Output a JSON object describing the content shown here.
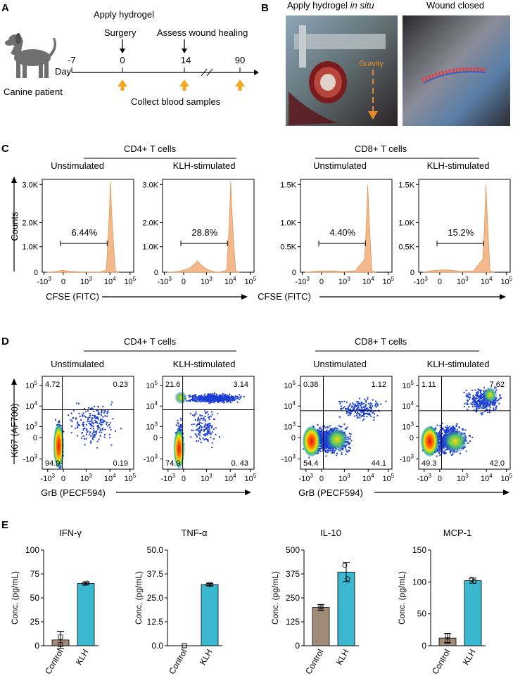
{
  "panels": {
    "A": "A",
    "B": "B",
    "C": "C",
    "D": "D",
    "E": "E"
  },
  "panel_a": {
    "apply_hydrogel": "Apply hydrogel",
    "surgery": "Surgery",
    "assess": "Assess wound healing",
    "patient": "Canine patient",
    "day_label": "Day",
    "days": [
      "-7",
      "0",
      "14",
      "90"
    ],
    "collect": "Collect blood samples",
    "colors": {
      "arrow": "#f5a623",
      "dog": "#6f6f6f"
    }
  },
  "panel_b": {
    "left_title_prefix": "Apply hydrogel ",
    "left_title_italic": "in situ",
    "right_title": "Wound closed",
    "gravity": "Gravity"
  },
  "panel_c": {
    "group_cd4": "CD4+ T cells",
    "group_cd8": "CD8+ T cells",
    "cond_unstim": "Unstimulated",
    "cond_klh": "KLH-stimulated",
    "ylabel": "Counts",
    "xlabel": "CFSE (FITC)",
    "hist_color": "#f3b98c",
    "cd4_yticks": [
      "1.0K",
      "2.0K",
      "3.0K"
    ],
    "cd8_yticks": [
      "0.5K",
      "1.0K",
      "1.5K"
    ],
    "xticks": [
      "-10",
      "0",
      "10",
      "10",
      "10"
    ],
    "xtick_exp": [
      "3",
      "",
      "3",
      "4",
      "5"
    ],
    "gates": [
      "6.44%",
      "28.8%",
      "4.40%",
      "15.2%"
    ]
  },
  "panel_d": {
    "group_cd4": "CD4+ T cells",
    "group_cd8": "CD8+ T cells",
    "cond_unstim": "Unstimulated",
    "cond_klh": "KLH-stimulated",
    "ylabel": "Ki67 (AF700)",
    "xlabel": "GrB (PECF594)",
    "yticks": [
      "10",
      "10",
      "0",
      "-10"
    ],
    "ytick_exp": [
      "5",
      "4",
      "",
      "3"
    ],
    "ytick3": "10",
    "ytick3_exp": "3",
    "xticks": [
      "-10",
      "0",
      "10",
      "10",
      "10"
    ],
    "xtick_exp": [
      "3",
      "",
      "3",
      "4",
      "5"
    ],
    "quadrants": [
      {
        "ul": "4.72",
        "ur": "0.23",
        "ll": "94.9",
        "lr": "0.19"
      },
      {
        "ul": "21.6",
        "ur": "3.14",
        "ll": "74.9",
        "lr": "0. 43"
      },
      {
        "ul": "0.38",
        "ur": "1.12",
        "ll": "54.4",
        "lr": "44.1"
      },
      {
        "ul": "1.11",
        "ur": "7.62",
        "ll": "49.3",
        "lr": "42.0"
      }
    ]
  },
  "chart_data": [
    {
      "type": "bar",
      "title": "IFN-γ",
      "categories": [
        "Control",
        "KLH"
      ],
      "values": [
        6,
        65
      ],
      "errors": [
        9,
        1
      ],
      "points": [
        [
          9,
          1
        ],
        [
          65,
          65.5
        ]
      ],
      "ylabel": "Conc. (pg/mL)",
      "ylim": [
        0,
        100
      ],
      "yticks": [
        "0",
        "25",
        "50",
        "75",
        "100"
      ]
    },
    {
      "type": "bar",
      "title": "TNF-α",
      "categories": [
        "Control",
        "KLH"
      ],
      "values": [
        0,
        32
      ],
      "errors": [
        0,
        0.5
      ],
      "points": [
        [
          0,
          0
        ],
        [
          32,
          32
        ]
      ],
      "ylabel": "Conc. (pg/mL)",
      "ylim": [
        0,
        50
      ],
      "yticks": [
        "0.0",
        "12.5",
        "25.0",
        "37.5",
        "50.0"
      ]
    },
    {
      "type": "bar",
      "title": "IL-10",
      "categories": [
        "Control",
        "KLH"
      ],
      "values": [
        200,
        385
      ],
      "errors": [
        15,
        50
      ],
      "points": [
        [
          205,
          195
        ],
        [
          420,
          350
        ]
      ],
      "ylabel": "Conc. (pg/mL)",
      "ylim": [
        0,
        500
      ],
      "yticks": [
        "0",
        "125",
        "250",
        "375",
        "500"
      ]
    },
    {
      "type": "bar",
      "title": "MCP-1",
      "categories": [
        "Control",
        "KLH"
      ],
      "values": [
        12,
        102
      ],
      "errors": [
        7,
        4
      ],
      "points": [
        [
          16,
          7
        ],
        [
          104,
          101
        ]
      ],
      "ylabel": "Conc. (pg/mL)",
      "ylim": [
        0,
        150
      ],
      "yticks": [
        "0",
        "50",
        "100",
        "150"
      ]
    }
  ],
  "bar_colors": {
    "control": "#a08a78",
    "klh": "#3bb7cf"
  }
}
